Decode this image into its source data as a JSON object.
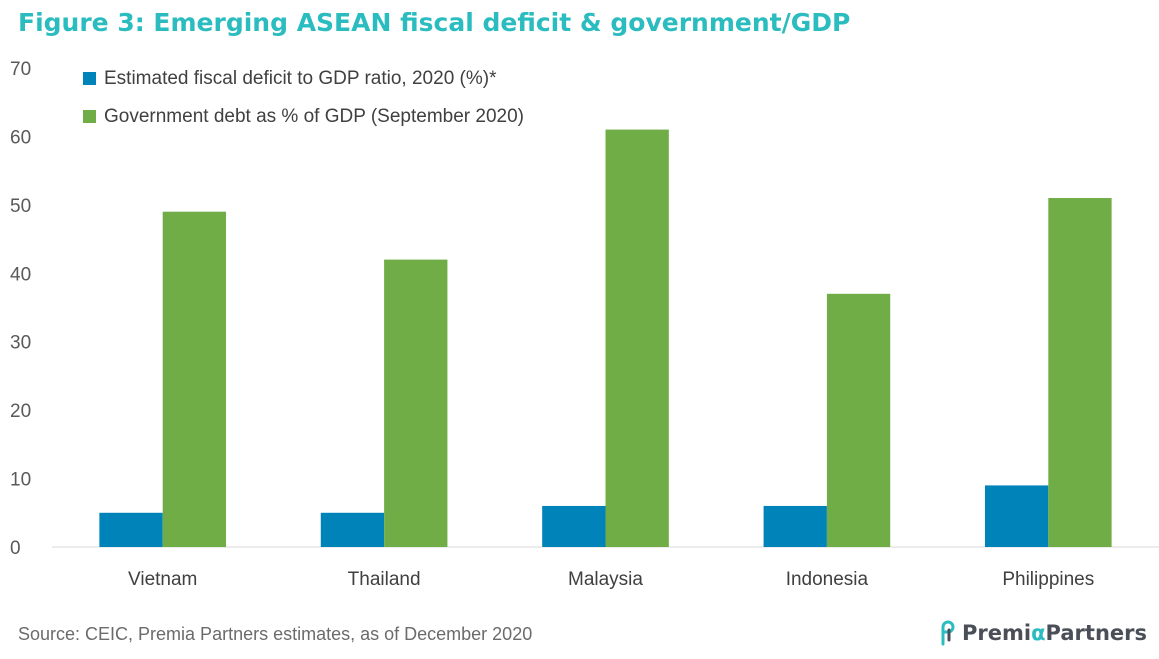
{
  "title": "Figure 3: Emerging ASEAN fiscal deficit & government/GDP",
  "source": "Source: CEIC, Premia Partners estimates, as of December 2020",
  "logo": {
    "name_part1": "Premi",
    "name_alpha": "α",
    "name_part2": "Partners"
  },
  "chart_data": {
    "type": "bar",
    "categories": [
      "Vietnam",
      "Thailand",
      "Malaysia",
      "Indonesia",
      "Philippines"
    ],
    "series": [
      {
        "name": "Estimated fiscal deficit to GDP ratio, 2020 (%)*",
        "values": [
          5,
          5,
          6,
          6,
          9
        ],
        "color": "#0083b8"
      },
      {
        "name": "Government debt as % of GDP (September 2020)",
        "values": [
          49,
          42,
          61,
          37,
          51
        ],
        "color": "#70ad47"
      }
    ],
    "ylim": [
      0,
      70
    ],
    "yticks": [
      0,
      10,
      20,
      30,
      40,
      50,
      60,
      70
    ],
    "grid": false,
    "legend_position": "top-left"
  },
  "colors": {
    "title": "#2bbcc0",
    "axis_text": "#595959",
    "source_text": "#6b6b6b"
  }
}
